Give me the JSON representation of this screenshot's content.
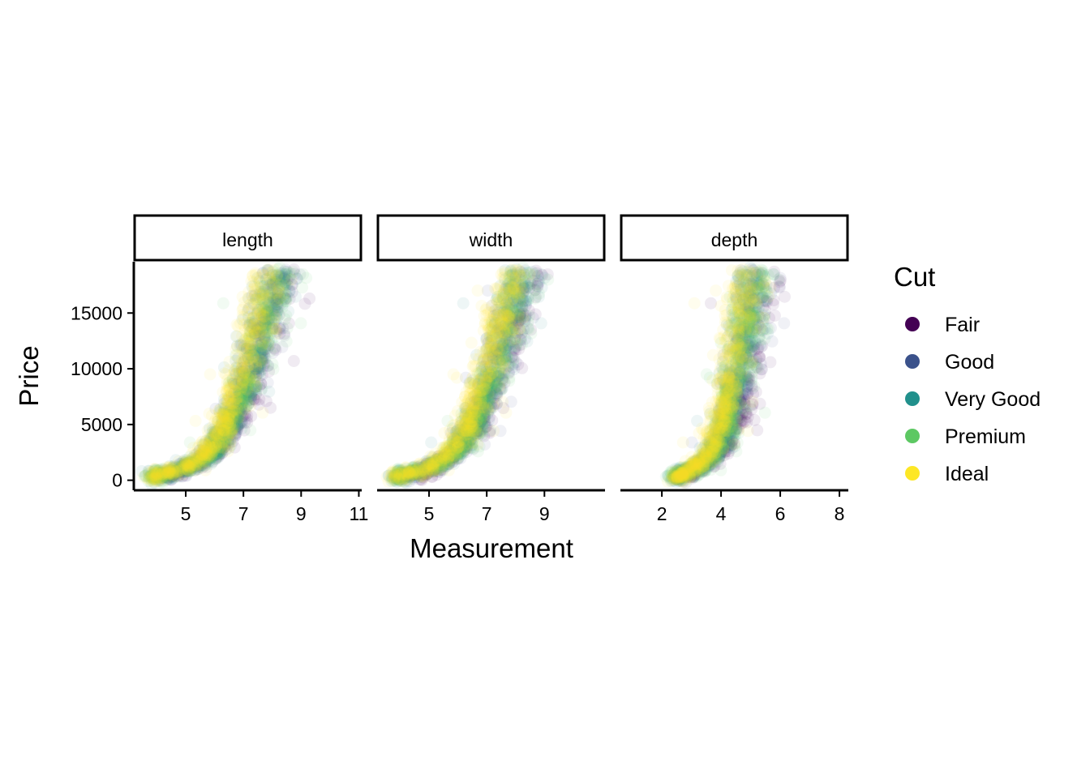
{
  "chart_data": {
    "type": "scatter",
    "facet_by": "Measurement",
    "xlabel": "Measurement",
    "ylabel": "Price",
    "ylim": [
      -900,
      19600
    ],
    "y_ticks": [
      0,
      5000,
      10000,
      15000
    ],
    "y_tick_labels": [
      "0",
      "5000",
      "10000",
      "15000"
    ],
    "legend": {
      "title": "Cut",
      "placement": "right",
      "items": [
        {
          "label": "Fair",
          "color": "#440154"
        },
        {
          "label": "Good",
          "color": "#3B528B"
        },
        {
          "label": "Very Good",
          "color": "#21908C"
        },
        {
          "label": "Premium",
          "color": "#5DC863"
        },
        {
          "label": "Ideal",
          "color": "#FDE725"
        }
      ]
    },
    "point_alpha": 0.05,
    "price_range": [
      326,
      18823
    ],
    "panels": [
      {
        "strip": "length",
        "xlim": [
          3.2,
          11.1
        ],
        "x_ticks": [
          5,
          7,
          9,
          11
        ],
        "x_tick_labels": [
          "5",
          "7",
          "9",
          "11"
        ],
        "curves": [
          {
            "cut": "Fair",
            "points": [
              [
                4.6,
                400
              ],
              [
                5.5,
                1500
              ],
              [
                6.2,
                3000
              ],
              [
                6.8,
                5000
              ],
              [
                7.3,
                8000
              ],
              [
                7.8,
                12000
              ],
              [
                8.2,
                16000
              ],
              [
                8.5,
                18500
              ]
            ]
          },
          {
            "cut": "Good",
            "points": [
              [
                4.2,
                400
              ],
              [
                5.2,
                1200
              ],
              [
                6.0,
                2600
              ],
              [
                6.6,
                5000
              ],
              [
                7.1,
                8500
              ],
              [
                7.6,
                12500
              ],
              [
                8.0,
                16500
              ],
              [
                8.3,
                18700
              ]
            ]
          },
          {
            "cut": "Very Good",
            "points": [
              [
                3.9,
                350
              ],
              [
                4.9,
                900
              ],
              [
                5.8,
                2200
              ],
              [
                6.4,
                4500
              ],
              [
                7.0,
                8000
              ],
              [
                7.5,
                12000
              ],
              [
                7.9,
                16000
              ],
              [
                8.2,
                18700
              ]
            ]
          },
          {
            "cut": "Premium",
            "points": [
              [
                3.9,
                350
              ],
              [
                5.0,
                1000
              ],
              [
                5.9,
                2300
              ],
              [
                6.6,
                5000
              ],
              [
                7.2,
                8800
              ],
              [
                7.7,
                13000
              ],
              [
                8.1,
                16800
              ],
              [
                8.4,
                18800
              ]
            ]
          },
          {
            "cut": "Ideal",
            "points": [
              [
                3.9,
                350
              ],
              [
                4.8,
                900
              ],
              [
                5.6,
                2100
              ],
              [
                6.2,
                4300
              ],
              [
                6.7,
                7800
              ],
              [
                7.2,
                11800
              ],
              [
                7.6,
                16000
              ],
              [
                7.9,
                18700
              ]
            ]
          }
        ]
      },
      {
        "strip": "width",
        "xlim": [
          3.2,
          11.1
        ],
        "x_ticks": [
          5,
          7,
          9
        ],
        "x_tick_labels": [
          "5",
          "7",
          "9"
        ],
        "curves": [
          {
            "cut": "Fair",
            "points": [
              [
                4.6,
                400
              ],
              [
                5.5,
                1500
              ],
              [
                6.2,
                3000
              ],
              [
                6.8,
                5000
              ],
              [
                7.3,
                8000
              ],
              [
                7.8,
                12000
              ],
              [
                8.2,
                16000
              ],
              [
                8.5,
                18500
              ]
            ]
          },
          {
            "cut": "Good",
            "points": [
              [
                4.2,
                400
              ],
              [
                5.2,
                1200
              ],
              [
                6.0,
                2600
              ],
              [
                6.6,
                5000
              ],
              [
                7.1,
                8500
              ],
              [
                7.6,
                12500
              ],
              [
                8.0,
                16500
              ],
              [
                8.3,
                18700
              ]
            ]
          },
          {
            "cut": "Very Good",
            "points": [
              [
                3.9,
                350
              ],
              [
                4.9,
                900
              ],
              [
                5.8,
                2200
              ],
              [
                6.4,
                4500
              ],
              [
                7.0,
                8000
              ],
              [
                7.5,
                12000
              ],
              [
                7.9,
                16000
              ],
              [
                8.2,
                18700
              ]
            ]
          },
          {
            "cut": "Premium",
            "points": [
              [
                3.9,
                350
              ],
              [
                5.0,
                1000
              ],
              [
                5.9,
                2300
              ],
              [
                6.6,
                5000
              ],
              [
                7.2,
                8800
              ],
              [
                7.7,
                13000
              ],
              [
                8.1,
                16800
              ],
              [
                8.4,
                18800
              ]
            ]
          },
          {
            "cut": "Ideal",
            "points": [
              [
                3.9,
                350
              ],
              [
                4.8,
                900
              ],
              [
                5.6,
                2100
              ],
              [
                6.2,
                4300
              ],
              [
                6.7,
                7800
              ],
              [
                7.2,
                11800
              ],
              [
                7.6,
                16000
              ],
              [
                7.9,
                18700
              ]
            ]
          }
        ]
      },
      {
        "strip": "depth",
        "xlim": [
          0.6,
          8.3
        ],
        "x_ticks": [
          2,
          4,
          6,
          8
        ],
        "x_tick_labels": [
          "2",
          "4",
          "6",
          "8"
        ],
        "curves": [
          {
            "cut": "Fair",
            "points": [
              [
                2.9,
                400
              ],
              [
                3.6,
                1500
              ],
              [
                4.2,
                3000
              ],
              [
                4.6,
                5000
              ],
              [
                4.9,
                8000
              ],
              [
                5.1,
                12000
              ],
              [
                5.3,
                16000
              ],
              [
                5.4,
                18500
              ]
            ]
          },
          {
            "cut": "Good",
            "points": [
              [
                2.6,
                400
              ],
              [
                3.3,
                1200
              ],
              [
                3.9,
                2600
              ],
              [
                4.3,
                5000
              ],
              [
                4.6,
                8500
              ],
              [
                4.9,
                12500
              ],
              [
                5.1,
                16500
              ],
              [
                5.2,
                18700
              ]
            ]
          },
          {
            "cut": "Very Good",
            "points": [
              [
                2.5,
                350
              ],
              [
                3.1,
                900
              ],
              [
                3.7,
                2200
              ],
              [
                4.1,
                4500
              ],
              [
                4.4,
                8000
              ],
              [
                4.7,
                12000
              ],
              [
                4.95,
                16000
              ],
              [
                5.1,
                18700
              ]
            ]
          },
          {
            "cut": "Premium",
            "points": [
              [
                2.5,
                350
              ],
              [
                3.2,
                1000
              ],
              [
                3.8,
                2300
              ],
              [
                4.2,
                5000
              ],
              [
                4.5,
                8800
              ],
              [
                4.8,
                13000
              ],
              [
                5.0,
                16800
              ],
              [
                5.2,
                18800
              ]
            ]
          },
          {
            "cut": "Ideal",
            "points": [
              [
                2.5,
                350
              ],
              [
                3.0,
                900
              ],
              [
                3.5,
                2100
              ],
              [
                3.9,
                4300
              ],
              [
                4.2,
                7800
              ],
              [
                4.5,
                11800
              ],
              [
                4.75,
                16000
              ],
              [
                4.9,
                18700
              ]
            ]
          }
        ]
      }
    ]
  }
}
